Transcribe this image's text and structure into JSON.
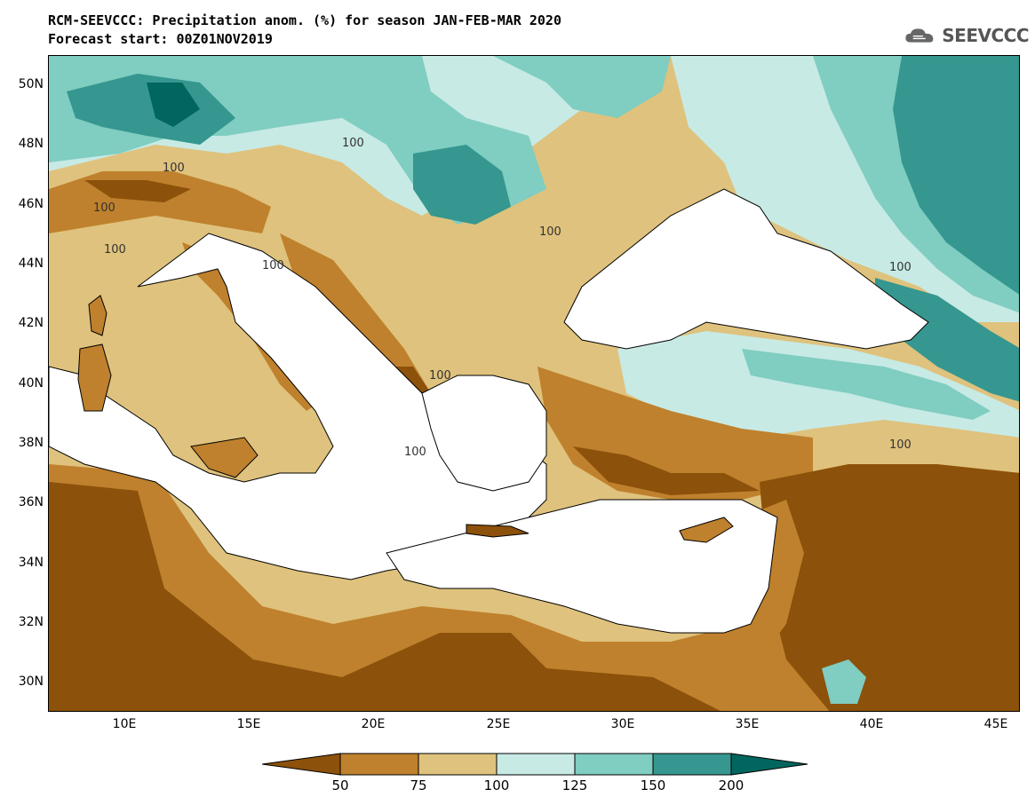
{
  "title": {
    "line1": "RCM-SEEVCCC: Precipitation anom. (%) for season JAN-FEB-MAR 2020",
    "line2": "Forecast start: 00Z01NOV2019"
  },
  "logo": {
    "text": "SEEVCCC",
    "icon": "cloud-icon"
  },
  "map": {
    "lat_labels": [
      "50N",
      "48N",
      "46N",
      "44N",
      "42N",
      "40N",
      "38N",
      "36N",
      "34N",
      "32N",
      "30N"
    ],
    "lon_labels": [
      "10E",
      "15E",
      "20E",
      "25E",
      "30E",
      "35E",
      "40E",
      "45E"
    ],
    "contour_labels": [
      "100",
      "100",
      "100",
      "100",
      "100",
      "100",
      "100",
      "100",
      "100",
      "100"
    ],
    "colors": {
      "c_below50": "#8c510a",
      "c_50_75": "#bf812d",
      "c_75_100": "#dfc27d",
      "c_100_125": "#c7eae5",
      "c_125_150": "#80cdc1",
      "c_150_200": "#35978f",
      "c_above200": "#01665e",
      "sea": "#ffffff"
    }
  },
  "colorbar": {
    "labels": [
      "50",
      "75",
      "100",
      "125",
      "150",
      "200"
    ],
    "colors": [
      "#8c510a",
      "#bf812d",
      "#dfc27d",
      "#c7eae5",
      "#80cdc1",
      "#35978f",
      "#01665e"
    ]
  }
}
